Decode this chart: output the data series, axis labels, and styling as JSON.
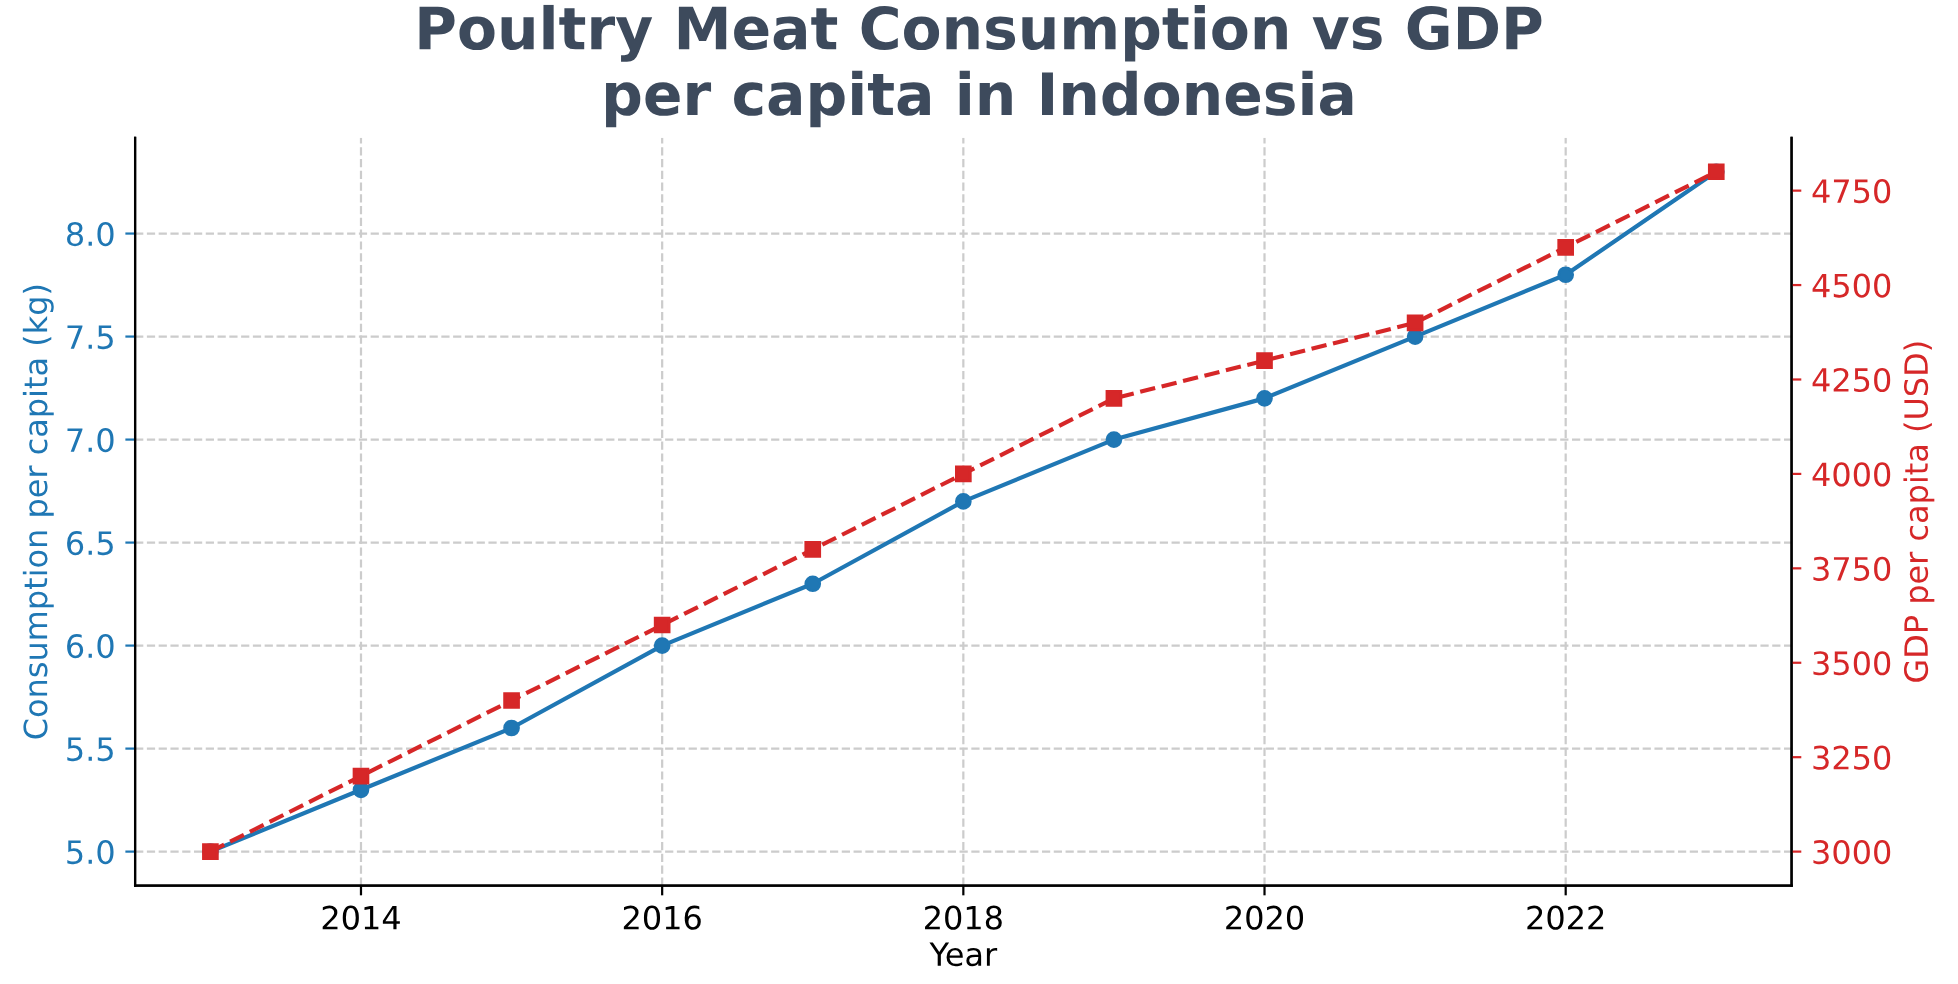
{
  "chart_data": {
    "type": "line",
    "title": "Poultry Meat Consumption vs GDP\nper capita in Indonesia",
    "xlabel": "Year",
    "ylabel": "Consumption per capita (kg)",
    "y2label": "GDP per capita (USD)",
    "x": [
      2013,
      2014,
      2015,
      2016,
      2017,
      2018,
      2019,
      2020,
      2021,
      2022,
      2023
    ],
    "series": [
      {
        "color": "#1f77b4",
        "marker": "circle",
        "line_style": "solid",
        "values": [
          5.0,
          5.3,
          5.6,
          6.0,
          6.3,
          6.7,
          7.0,
          7.2,
          7.5,
          7.8,
          8.3
        ]
      },
      {
        "color": "#d62728",
        "marker": "square",
        "line_style": "dashed",
        "axis": "y2",
        "values": [
          3000,
          3200,
          3400,
          3600,
          3800,
          4000,
          4200,
          4300,
          4400,
          4600,
          4800
        ]
      }
    ],
    "xlim": [
      2012.5,
      2023.5
    ],
    "xticks": [
      2014,
      2016,
      2018,
      2020,
      2022
    ],
    "ylim": [
      4.835,
      8.465
    ],
    "yticks": [
      {
        "value": 5,
        "label": "5.0"
      },
      5.5,
      {
        "value": 6,
        "label": "6.0"
      },
      6.5,
      {
        "value": 7,
        "label": "7.0"
      },
      7.5,
      {
        "value": 8,
        "label": "8.0"
      }
    ],
    "y2lim": [
      2910,
      4890
    ],
    "y2ticks": [
      3000,
      3250,
      3500,
      3750,
      4000,
      4250,
      4500,
      4750
    ],
    "grid": true,
    "legend": false
  }
}
